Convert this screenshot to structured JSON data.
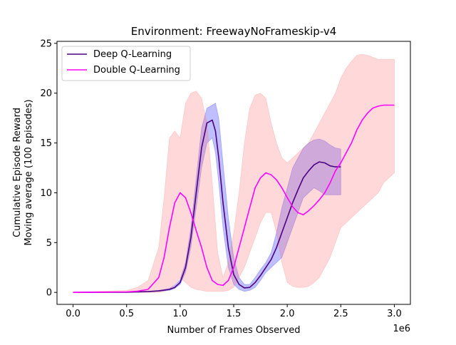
{
  "chart_data": {
    "type": "line",
    "title": "Environment: FreewayNoFrameskip-v4",
    "xlabel": "Number of Frames Observed",
    "ylabel_line1": "Cumulative Episode Reward",
    "ylabel_line2": "Moving average (100 episodes)",
    "x_offset_label": "1e6",
    "xlim": [
      -0.15,
      3.15
    ],
    "ylim": [
      -1.2,
      25.2
    ],
    "x_ticks": [
      0.0,
      0.5,
      1.0,
      1.5,
      2.0,
      2.5,
      3.0
    ],
    "x_tick_labels": [
      "0.0",
      "0.5",
      "1.0",
      "1.5",
      "2.0",
      "2.5",
      "3.0"
    ],
    "y_ticks": [
      0,
      5,
      10,
      15,
      20,
      25
    ],
    "y_tick_labels": [
      "0",
      "5",
      "10",
      "15",
      "20",
      "25"
    ],
    "grid": false,
    "legend_position": "upper-left",
    "series": [
      {
        "name": "Deep Q-Learning",
        "color": "#4b0082",
        "band_color": "#0000ff",
        "x": [
          0.0,
          0.5,
          0.7,
          0.8,
          0.9,
          0.95,
          1.0,
          1.05,
          1.1,
          1.15,
          1.2,
          1.25,
          1.3,
          1.33,
          1.36,
          1.4,
          1.45,
          1.5,
          1.55,
          1.6,
          1.65,
          1.7,
          1.75,
          1.8,
          1.85,
          1.9,
          1.95,
          2.0,
          2.05,
          2.1,
          2.15,
          2.2,
          2.25,
          2.3,
          2.35,
          2.4,
          2.45,
          2.5
        ],
        "y": [
          0.0,
          0.02,
          0.08,
          0.15,
          0.3,
          0.5,
          1.0,
          2.5,
          5.5,
          10.0,
          14.5,
          17.0,
          17.3,
          16.2,
          13.5,
          9.0,
          4.5,
          1.8,
          0.8,
          0.45,
          0.5,
          1.0,
          1.7,
          2.5,
          3.3,
          4.5,
          6.0,
          7.5,
          9.0,
          10.3,
          11.5,
          12.2,
          12.8,
          13.1,
          13.0,
          12.7,
          12.6,
          12.6
        ],
        "lower": [
          0.0,
          0.0,
          0.05,
          0.1,
          0.2,
          0.4,
          0.8,
          2.0,
          4.5,
          8.5,
          12.5,
          15.0,
          15.5,
          14.0,
          11.0,
          6.5,
          2.5,
          0.8,
          0.3,
          0.1,
          0.2,
          0.5,
          1.2,
          2.0,
          2.5,
          3.0,
          3.5,
          5.0,
          6.5,
          8.0,
          9.5,
          10.0,
          10.5,
          10.2,
          9.8,
          9.8,
          9.8,
          9.8
        ],
        "upper": [
          0.0,
          0.05,
          0.12,
          0.2,
          0.4,
          0.7,
          1.3,
          3.0,
          6.5,
          11.5,
          16.5,
          18.5,
          18.8,
          19.0,
          17.5,
          13.0,
          7.5,
          3.5,
          1.5,
          0.8,
          0.8,
          1.5,
          2.3,
          3.0,
          4.0,
          6.0,
          8.5,
          10.5,
          12.5,
          13.5,
          14.5,
          15.0,
          15.3,
          15.4,
          15.2,
          14.8,
          14.5,
          14.4
        ]
      },
      {
        "name": "Double Q-Learning",
        "color": "#ff00ff",
        "band_color": "#ff6666",
        "x": [
          0.0,
          0.5,
          0.6,
          0.7,
          0.8,
          0.85,
          0.9,
          0.95,
          1.0,
          1.05,
          1.1,
          1.15,
          1.2,
          1.25,
          1.3,
          1.35,
          1.4,
          1.45,
          1.5,
          1.55,
          1.6,
          1.65,
          1.7,
          1.75,
          1.8,
          1.85,
          1.9,
          1.95,
          2.0,
          2.05,
          2.1,
          2.15,
          2.2,
          2.25,
          2.3,
          2.35,
          2.4,
          2.45,
          2.5,
          2.55,
          2.6,
          2.65,
          2.7,
          2.75,
          2.8,
          2.85,
          2.9,
          2.95,
          3.0
        ],
        "y": [
          0.0,
          0.05,
          0.12,
          0.3,
          1.5,
          3.5,
          6.5,
          9.0,
          10.0,
          9.5,
          8.0,
          6.2,
          4.5,
          2.5,
          1.2,
          0.8,
          0.7,
          1.2,
          2.5,
          4.5,
          6.5,
          8.5,
          10.5,
          11.5,
          12.0,
          11.8,
          11.3,
          10.5,
          9.5,
          8.6,
          8.0,
          7.8,
          8.2,
          8.7,
          9.3,
          10.0,
          11.0,
          12.2,
          13.0,
          14.0,
          15.0,
          16.3,
          17.3,
          18.0,
          18.5,
          18.7,
          18.8,
          18.8,
          18.8
        ],
        "lower": [
          0.0,
          0.0,
          0.0,
          0.0,
          0.0,
          0.1,
          0.3,
          0.8,
          1.5,
          1.0,
          0.5,
          0.3,
          0.2,
          0.1,
          0.1,
          0.1,
          0.1,
          0.2,
          0.5,
          1.5,
          2.5,
          4.0,
          5.5,
          7.0,
          8.0,
          8.0,
          6.0,
          3.0,
          1.0,
          0.6,
          0.5,
          0.5,
          0.6,
          1.0,
          1.5,
          2.5,
          3.5,
          5.0,
          6.5,
          7.0,
          7.5,
          8.0,
          8.5,
          9.0,
          9.5,
          10.0,
          11.0,
          11.5,
          12.0
        ],
        "upper": [
          0.0,
          0.2,
          0.5,
          1.2,
          4.5,
          9.5,
          15.5,
          16.2,
          15.5,
          19.0,
          20.0,
          20.2,
          19.5,
          17.0,
          11.0,
          4.0,
          1.5,
          3.0,
          6.0,
          10.0,
          15.0,
          18.5,
          19.8,
          20.0,
          19.5,
          17.0,
          15.0,
          13.5,
          13.0,
          13.5,
          14.0,
          14.5,
          15.0,
          16.0,
          17.0,
          18.0,
          19.0,
          20.0,
          21.5,
          22.5,
          23.2,
          23.8,
          23.9,
          23.8,
          23.6,
          23.4,
          23.4,
          23.4,
          23.4
        ]
      }
    ]
  }
}
